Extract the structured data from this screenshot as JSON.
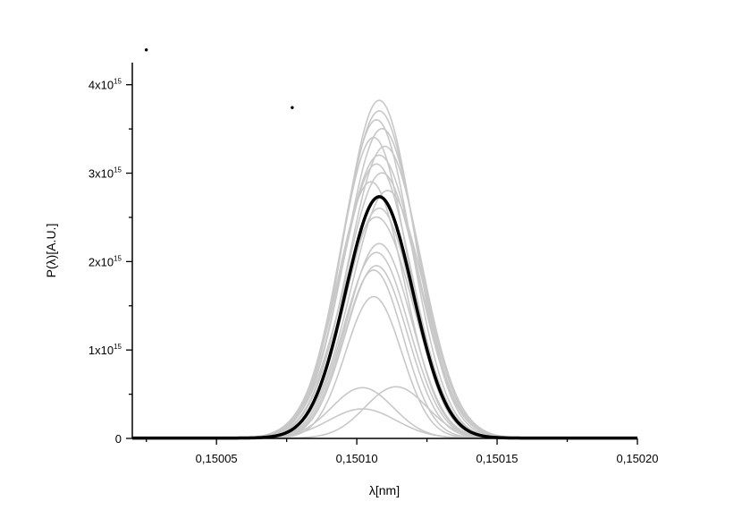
{
  "chart_data": {
    "type": "line",
    "xlabel": "λ[nm]",
    "ylabel": "P(λ)[A.U.]",
    "xlim": [
      0.15002,
      0.1502
    ],
    "ylim": [
      0,
      4250000000000000.0
    ],
    "x_ticks": [
      {
        "value": 0.15005,
        "label": "0,15005"
      },
      {
        "value": 0.1501,
        "label": "0,15010"
      },
      {
        "value": 0.15015,
        "label": "0,15015"
      },
      {
        "value": 0.1502,
        "label": "0,15020"
      }
    ],
    "y_ticks": [
      {
        "value": 0,
        "mant": "0",
        "exp": ""
      },
      {
        "value": 1000000000000000.0,
        "mant": "1x10",
        "exp": "15"
      },
      {
        "value": 2000000000000000.0,
        "mant": "2x10",
        "exp": "15"
      },
      {
        "value": 3000000000000000.0,
        "mant": "3x10",
        "exp": "15"
      },
      {
        "value": 4000000000000000.0,
        "mant": "4x10",
        "exp": "15"
      }
    ],
    "grid": false,
    "legend": "none",
    "colors": {
      "shots": "#c8c8c8",
      "average": "#000000",
      "axis": "#000000"
    },
    "series": [
      {
        "role": "average",
        "center": 0.150108,
        "peak": 2730000000000000.0,
        "width": 1.2e-05
      },
      {
        "role": "shot",
        "center": 0.150108,
        "peak": 3820000000000000.0,
        "width": 1.25e-05
      },
      {
        "role": "shot",
        "center": 0.150108,
        "peak": 3700000000000000.0,
        "width": 1.3e-05
      },
      {
        "role": "shot",
        "center": 0.150107,
        "peak": 3600000000000000.0,
        "width": 1.25e-05
      },
      {
        "role": "shot",
        "center": 0.150109,
        "peak": 3500000000000000.0,
        "width": 1.3e-05
      },
      {
        "role": "shot",
        "center": 0.150106,
        "peak": 3400000000000000.0,
        "width": 1.2e-05
      },
      {
        "role": "shot",
        "center": 0.15011,
        "peak": 3300000000000000.0,
        "width": 1.3e-05
      },
      {
        "role": "shot",
        "center": 0.150108,
        "peak": 3200000000000000.0,
        "width": 1.35e-05
      },
      {
        "role": "shot",
        "center": 0.150107,
        "peak": 3100000000000000.0,
        "width": 1.25e-05
      },
      {
        "role": "shot",
        "center": 0.150109,
        "peak": 3000000000000000.0,
        "width": 1.3e-05
      },
      {
        "role": "shot",
        "center": 0.150105,
        "peak": 2900000000000000.0,
        "width": 1.2e-05
      },
      {
        "role": "shot",
        "center": 0.150111,
        "peak": 2800000000000000.0,
        "width": 1.3e-05
      },
      {
        "role": "shot",
        "center": 0.150108,
        "peak": 2600000000000000.0,
        "width": 1.2e-05
      },
      {
        "role": "shot",
        "center": 0.150107,
        "peak": 2500000000000000.0,
        "width": 1.3e-05
      },
      {
        "role": "shot",
        "center": 0.150108,
        "peak": 2200000000000000.0,
        "width": 1.15e-05
      },
      {
        "role": "shot",
        "center": 0.150107,
        "peak": 2100000000000000.0,
        "width": 1.15e-05
      },
      {
        "role": "shot",
        "center": 0.150107,
        "peak": 1950000000000000.0,
        "width": 1.1e-05
      },
      {
        "role": "shot",
        "center": 0.150106,
        "peak": 1900000000000000.0,
        "width": 1.05e-05
      },
      {
        "role": "shot",
        "center": 0.150106,
        "peak": 1600000000000000.0,
        "width": 1e-05
      },
      {
        "role": "shot",
        "center": 0.150102,
        "peak": 570000000000000.0,
        "width": 1.1e-05
      },
      {
        "role": "shot",
        "center": 0.150114,
        "peak": 580000000000000.0,
        "width": 1.1e-05
      },
      {
        "role": "shot",
        "center": 0.150102,
        "peak": 330000000000000.0,
        "width": 1.2e-05
      }
    ],
    "annotations": [
      {
        "x": 0.150025,
        "y": 4350000000000000.0,
        "text": "•"
      },
      {
        "x": 0.150077,
        "y": 3700000000000000.0,
        "text": "•"
      }
    ]
  }
}
